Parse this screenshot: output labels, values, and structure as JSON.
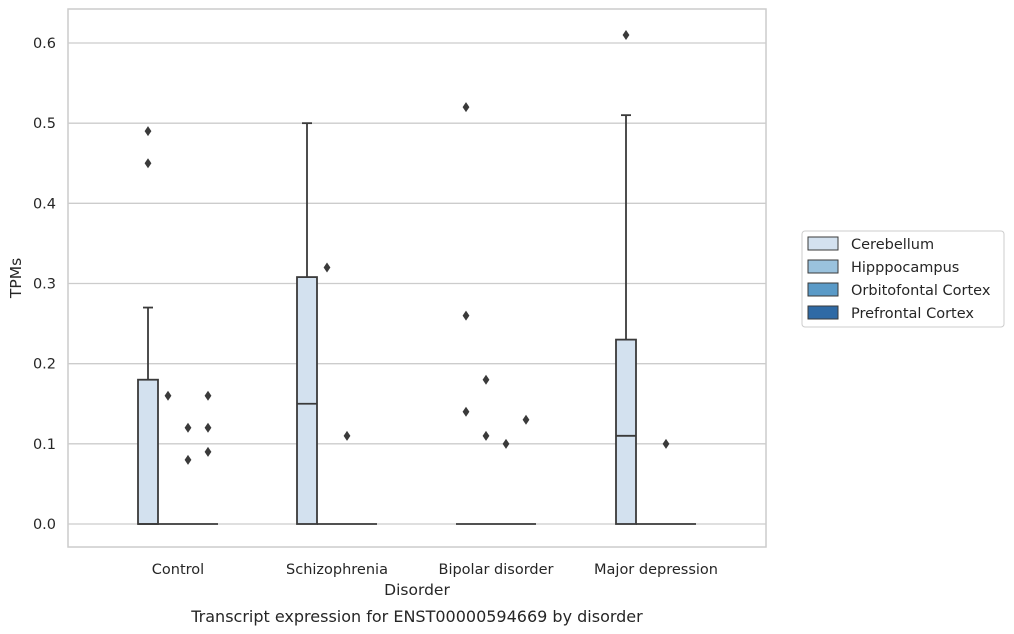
{
  "chart_data": {
    "type": "box",
    "title": "Transcript expression for ENST00000594669 by disorder",
    "xlabel": "Disorder",
    "ylabel": "TPMs",
    "ylim": [
      -0.03,
      0.64
    ],
    "yticks": [
      0.0,
      0.1,
      0.2,
      0.3,
      0.4,
      0.5,
      0.6
    ],
    "ytick_labels": [
      "0.0",
      "0.1",
      "0.2",
      "0.3",
      "0.4",
      "0.5",
      "0.6"
    ],
    "grid": true,
    "legend_position": "right",
    "categories": [
      "Control",
      "Schizophrenia",
      "Bipolar disorder",
      "Major depression"
    ],
    "series": [
      {
        "name": "Cerebellum",
        "color": "#d3e1ef",
        "boxes": [
          {
            "q1": 0.0,
            "median": 0.0,
            "q3": 0.18,
            "whisker_low": 0.0,
            "whisker_high": 0.27,
            "outliers": [
              0.49,
              0.45
            ]
          },
          {
            "q1": 0.0,
            "median": 0.15,
            "q3": 0.308,
            "whisker_low": 0.0,
            "whisker_high": 0.5,
            "outliers": []
          },
          {
            "q1": 0.0,
            "median": 0.0,
            "q3": 0.0,
            "whisker_low": 0.0,
            "whisker_high": 0.0,
            "outliers": [
              0.52,
              0.26,
              0.14
            ]
          },
          {
            "q1": 0.0,
            "median": 0.11,
            "q3": 0.23,
            "whisker_low": 0.0,
            "whisker_high": 0.51,
            "outliers": [
              0.61
            ]
          }
        ]
      },
      {
        "name": "Hipppocampus",
        "color": "#9ac2dd",
        "boxes": [
          {
            "q1": 0.0,
            "median": 0.0,
            "q3": 0.0,
            "whisker_low": 0.0,
            "whisker_high": 0.0,
            "outliers": [
              0.16
            ]
          },
          {
            "q1": 0.0,
            "median": 0.0,
            "q3": 0.0,
            "whisker_low": 0.0,
            "whisker_high": 0.0,
            "outliers": [
              0.32
            ]
          },
          {
            "q1": 0.0,
            "median": 0.0,
            "q3": 0.0,
            "whisker_low": 0.0,
            "whisker_high": 0.0,
            "outliers": [
              0.18,
              0.11
            ]
          },
          {
            "q1": 0.0,
            "median": 0.0,
            "q3": 0.0,
            "whisker_low": 0.0,
            "whisker_high": 0.0,
            "outliers": []
          }
        ]
      },
      {
        "name": "Orbitofontal Cortex",
        "color": "#5a9ac7",
        "boxes": [
          {
            "q1": 0.0,
            "median": 0.0,
            "q3": 0.0,
            "whisker_low": 0.0,
            "whisker_high": 0.0,
            "outliers": [
              0.12,
              0.08
            ]
          },
          {
            "q1": 0.0,
            "median": 0.0,
            "q3": 0.0,
            "whisker_low": 0.0,
            "whisker_high": 0.0,
            "outliers": [
              0.11
            ]
          },
          {
            "q1": 0.0,
            "median": 0.0,
            "q3": 0.0,
            "whisker_low": 0.0,
            "whisker_high": 0.0,
            "outliers": [
              0.1
            ]
          },
          {
            "q1": 0.0,
            "median": 0.0,
            "q3": 0.0,
            "whisker_low": 0.0,
            "whisker_high": 0.0,
            "outliers": [
              0.1
            ]
          }
        ]
      },
      {
        "name": "Prefrontal Cortex",
        "color": "#2f6aa5",
        "boxes": [
          {
            "q1": 0.0,
            "median": 0.0,
            "q3": 0.0,
            "whisker_low": 0.0,
            "whisker_high": 0.0,
            "outliers": [
              0.16,
              0.12,
              0.09
            ]
          },
          {
            "q1": 0.0,
            "median": 0.0,
            "q3": 0.0,
            "whisker_low": 0.0,
            "whisker_high": 0.0,
            "outliers": []
          },
          {
            "q1": 0.0,
            "median": 0.0,
            "q3": 0.0,
            "whisker_low": 0.0,
            "whisker_high": 0.0,
            "outliers": [
              0.13
            ]
          },
          {
            "q1": 0.0,
            "median": 0.0,
            "q3": 0.0,
            "whisker_low": 0.0,
            "whisker_high": 0.0,
            "outliers": []
          }
        ]
      }
    ]
  },
  "colors": {
    "edge": "#3a3a3a",
    "grid": "#cccccc",
    "text": "#262626"
  }
}
